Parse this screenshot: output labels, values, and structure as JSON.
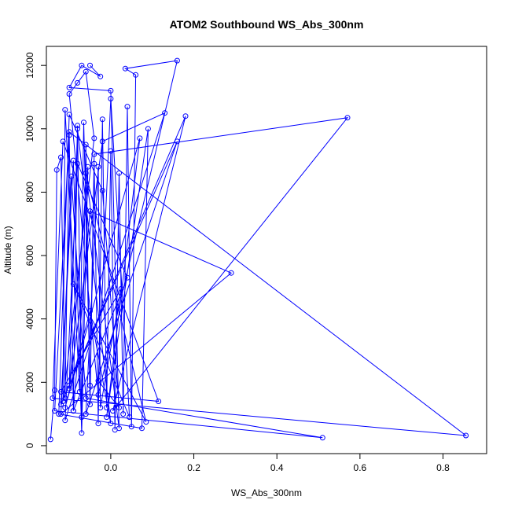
{
  "chart_data": {
    "type": "line",
    "title": "ATOM2 Southbound WS_Abs_300nm",
    "xlabel": "WS_Abs_300nm",
    "ylabel": "Altitude (m)",
    "xlim": [
      -0.155,
      0.905
    ],
    "ylim": [
      -250,
      12600
    ],
    "x_ticks": [
      0.0,
      0.2,
      0.4,
      0.6,
      0.8
    ],
    "x_tick_labels": [
      "0.0",
      "0.2",
      "0.4",
      "0.6",
      "0.8"
    ],
    "y_ticks": [
      0,
      2000,
      4000,
      6000,
      8000,
      10000,
      12000
    ],
    "y_tick_labels": [
      "0",
      "2000",
      "4000",
      "6000",
      "8000",
      "10000",
      "12000"
    ],
    "grid": false,
    "legend": "none",
    "series": [
      {
        "color": "#0000ff",
        "points": [
          [
            -0.145,
            200
          ],
          [
            -0.135,
            1750
          ],
          [
            -0.13,
            8700
          ],
          [
            -0.12,
            9100
          ],
          [
            -0.11,
            1500
          ],
          [
            -0.1,
            9800
          ],
          [
            -0.09,
            1100
          ],
          [
            -0.08,
            10100
          ],
          [
            -0.07,
            900
          ],
          [
            -0.06,
            9500
          ],
          [
            -0.05,
            1300
          ],
          [
            -0.04,
            8900
          ],
          [
            -0.03,
            700
          ],
          [
            -0.02,
            10300
          ],
          [
            -0.01,
            1200
          ],
          [
            0.0,
            9300
          ],
          [
            0.01,
            500
          ],
          [
            0.02,
            8600
          ],
          [
            0.03,
            1000
          ],
          [
            0.04,
            10700
          ],
          [
            0.05,
            600
          ],
          [
            0.06,
            11700
          ],
          [
            0.035,
            11900
          ],
          [
            0.16,
            12150
          ],
          [
            -0.03,
            1600
          ],
          [
            -0.1,
            11100
          ],
          [
            -0.08,
            11450
          ],
          [
            -0.06,
            11800
          ],
          [
            -0.04,
            9700
          ],
          [
            -0.115,
            1400
          ],
          [
            -0.11,
            10600
          ],
          [
            -0.075,
            1700
          ],
          [
            -0.065,
            10200
          ],
          [
            -0.05,
            1900
          ],
          [
            -0.04,
            9200
          ],
          [
            0.57,
            10350
          ],
          [
            0.005,
            1100
          ],
          [
            0.18,
            10400
          ],
          [
            -0.12,
            1300
          ],
          [
            -0.09,
            9000
          ],
          [
            -0.07,
            400
          ],
          [
            -0.055,
            8800
          ],
          [
            -0.1,
            1800
          ],
          [
            -0.02,
            9600
          ],
          [
            0.13,
            10500
          ],
          [
            -0.11,
            800
          ],
          [
            -0.08,
            8900
          ],
          [
            0.04,
            5300
          ],
          [
            -0.09,
            1100
          ],
          [
            -0.05,
            7400
          ],
          [
            0.29,
            5450
          ],
          [
            -0.12,
            1000
          ],
          [
            -0.095,
            8500
          ],
          [
            -0.06,
            1500
          ],
          [
            0.51,
            250
          ],
          [
            -0.135,
            1100
          ],
          [
            -0.1,
            9900
          ],
          [
            0.855,
            320
          ],
          [
            -0.14,
            1500
          ],
          [
            -0.115,
            9600
          ],
          [
            0.115,
            1400
          ],
          [
            -0.12,
            1700
          ],
          [
            0.025,
            4950
          ],
          [
            -0.025,
            1200
          ],
          [
            -0.03,
            8800
          ],
          [
            -0.06,
            1000
          ],
          [
            0.16,
            9600
          ],
          [
            -0.1,
            1900
          ],
          [
            -0.08,
            10000
          ],
          [
            0.0,
            700
          ],
          [
            -0.05,
            4250
          ],
          [
            -0.11,
            1200
          ],
          [
            0.07,
            9700
          ],
          [
            -0.01,
            900
          ],
          [
            0.09,
            10000
          ],
          [
            0.075,
            550
          ],
          [
            -0.125,
            1000
          ],
          [
            -0.1,
            10450
          ],
          [
            -0.02,
            8050
          ],
          [
            0.02,
            1200
          ],
          [
            -0.03,
            2050
          ],
          [
            0.0,
            10950
          ],
          [
            0.045,
            900
          ],
          [
            -0.09,
            5100
          ],
          [
            0.085,
            750
          ],
          [
            -0.06,
            8600
          ],
          [
            0.02,
            550
          ],
          [
            0.0,
            11200
          ],
          [
            -0.1,
            11300
          ],
          [
            -0.07,
            12000
          ],
          [
            -0.025,
            11650
          ],
          [
            -0.05,
            12000
          ]
        ]
      }
    ]
  }
}
